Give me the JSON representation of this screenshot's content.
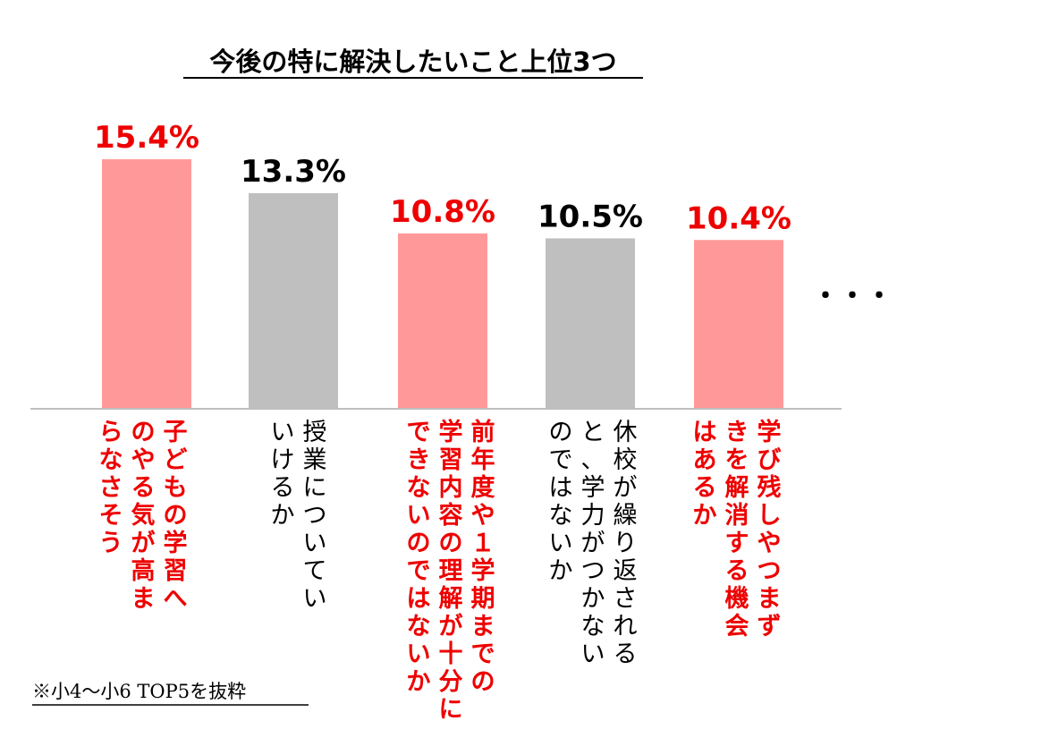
{
  "chart_data": {
    "type": "bar",
    "title": "今後の特に解決したいこと上位3つ",
    "categories": [
      [
        "子どもの学習へ",
        "のやる気が高ま",
        "らなさそう"
      ],
      [
        "授業についてい",
        "いけるか"
      ],
      [
        "前年度や１学期までの",
        "学習内容の理解が十分に",
        "できないのではないか"
      ],
      [
        "休校が繰り返される",
        "と、学力がつかない",
        "のではないか"
      ],
      [
        "学び残しやつまず",
        "きを解消する機会",
        "はあるか"
      ]
    ],
    "values": [
      15.4,
      13.3,
      10.8,
      10.5,
      10.4
    ],
    "value_labels": [
      "15.4%",
      "13.3%",
      "10.8%",
      "10.5%",
      "10.4%"
    ],
    "highlighted": [
      true,
      false,
      true,
      false,
      true
    ],
    "ylim": [
      0,
      15.4
    ],
    "grid": false,
    "legend": "none",
    "colors": {
      "highlight_bar": "#FF9999",
      "normal_bar": "#BFBFBF",
      "highlight_text": "#EE0000",
      "normal_text": "#000000",
      "axis": "#BFBFBF"
    },
    "ellipsis": "・・・",
    "footnote": "※小4～小6  TOP5を抜粋"
  }
}
